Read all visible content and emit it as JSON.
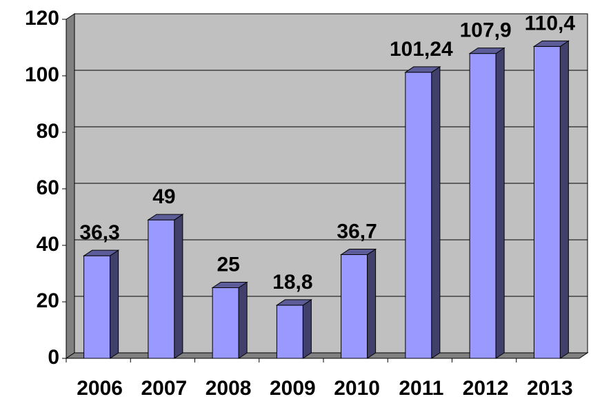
{
  "chart_data": {
    "type": "bar",
    "categories": [
      "2006",
      "2007",
      "2008",
      "2009",
      "2010",
      "2011",
      "2012",
      "2013"
    ],
    "values": [
      36.3,
      49,
      25,
      18.8,
      36.7,
      101.24,
      107.9,
      110.4
    ],
    "value_labels": [
      "36,3",
      "49",
      "25",
      "18,8",
      "36,7",
      "101,24",
      "107,9",
      "110,4"
    ],
    "color": "#9999ff",
    "ylim": [
      0,
      120
    ],
    "yticks": [
      0,
      20,
      40,
      60,
      80,
      100,
      120
    ],
    "grid": true
  }
}
